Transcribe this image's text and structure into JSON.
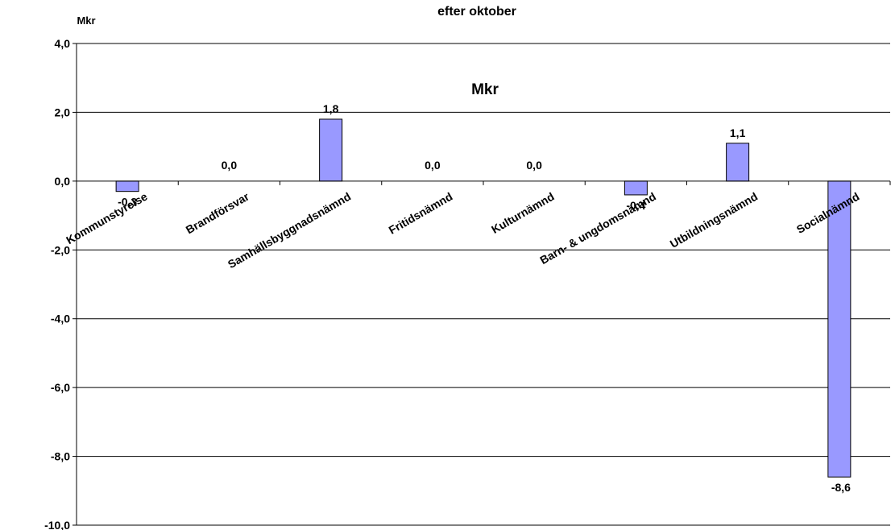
{
  "chart_data": {
    "type": "bar",
    "title": "efter oktober",
    "subtitle": "Mkr",
    "ylabel": "Mkr",
    "xlabel": "",
    "categories": [
      "Kommunstyrelse",
      "Brandförsvar",
      "Samhällsbyggnadsnämnd",
      "Fritidsnämnd",
      "Kulturnämnd",
      "Barn- & ungdomsnämnd",
      "Utbildningsnämnd",
      "Socialnämnd"
    ],
    "values": [
      -0.3,
      0.0,
      1.8,
      0.0,
      0.0,
      -0.4,
      1.1,
      -8.6
    ],
    "data_labels": [
      "-0,3",
      "0,0",
      "1,8",
      "0,0",
      "0,0",
      "-0,4",
      "1,1",
      "-8,6"
    ],
    "ylim": [
      -10,
      4
    ],
    "yticks": [
      4,
      2,
      0,
      -2,
      -4,
      -6,
      -8,
      -10
    ],
    "ytick_labels": [
      "4,0",
      "2,0",
      "0,0",
      "-2,0",
      "-4,0",
      "-6,0",
      "-8,0",
      "-10,0"
    ],
    "grid": true,
    "bar_color": "#9999ff",
    "bar_edge_color": "#000000"
  }
}
